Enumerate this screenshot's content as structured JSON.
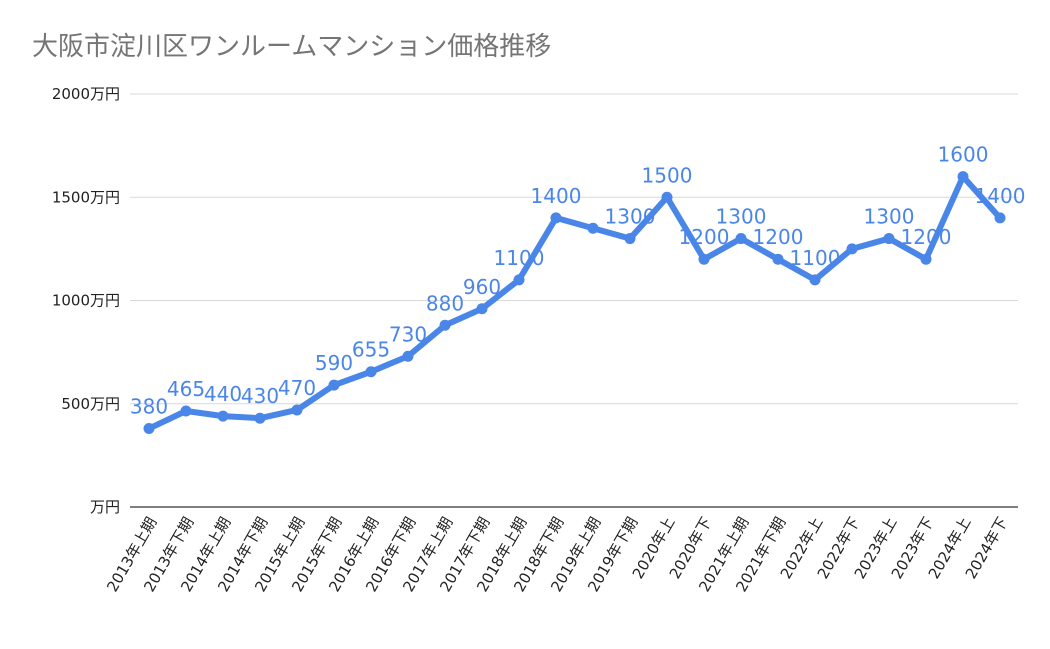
{
  "chart_data": {
    "type": "line",
    "title": "大阪市淀川区ワンルームマンション価格推移",
    "unit": "万円",
    "ylim": [
      0,
      2000
    ],
    "yticks": [
      0,
      500,
      1000,
      1500,
      2000
    ],
    "ytick_labels": [
      "万円",
      "500万円",
      "1000万円",
      "1500万円",
      "2000万円"
    ],
    "grid": true,
    "series_color": "#4a86e8",
    "categories": [
      "2013年上期",
      "2013年下期",
      "2014年上期",
      "2014年下期",
      "2015年上期",
      "2015年下期",
      "2016年上期",
      "2016年下期",
      "2017年上期",
      "2017年下期",
      "2018年上期",
      "2018年下期",
      "2019年上期",
      "2019年下期",
      "2020年上",
      "2020年下",
      "2021年上期",
      "2021年下期",
      "2022年上",
      "2022年下",
      "2023年上",
      "2023年下",
      "2024年上",
      "2024年下"
    ],
    "values": [
      380,
      465,
      440,
      430,
      470,
      590,
      655,
      730,
      880,
      960,
      1100,
      1400,
      1350,
      1300,
      1500,
      1200,
      1300,
      1200,
      1100,
      1250,
      1300,
      1200,
      1600,
      1400
    ],
    "data_labels": [
      "380",
      "465",
      "440",
      "430",
      "470",
      "590",
      "655",
      "730",
      "880",
      "960",
      "1100",
      "1400",
      "",
      "1300",
      "1500",
      "1200",
      "1300",
      "1200",
      "1100",
      "",
      "1300",
      "1200",
      "1600",
      "1400"
    ]
  }
}
